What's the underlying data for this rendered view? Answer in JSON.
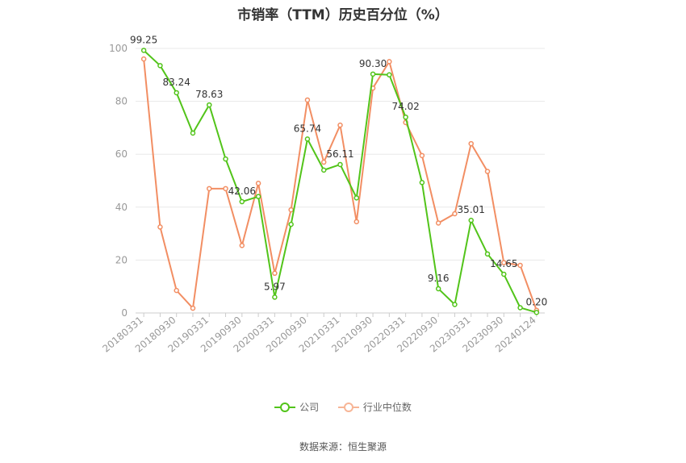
{
  "chart_data": {
    "type": "line",
    "title": "市销率（TTM）历史百分位（%）",
    "x": [
      "20180331",
      "20180630",
      "20180930",
      "20181231",
      "20190331",
      "20190630",
      "20190930",
      "20191231",
      "20200331",
      "20200630",
      "20200930",
      "20201231",
      "20210331",
      "20210630",
      "20210930",
      "20211231",
      "20220331",
      "20220630",
      "20220930",
      "20221231",
      "20230331",
      "20230630",
      "20230930",
      "20231231",
      "20240124"
    ],
    "x_tick_labels": [
      "20180331",
      "20180930",
      "20190331",
      "20190930",
      "20200331",
      "20200930",
      "20210331",
      "20210930",
      "20220331",
      "20220930",
      "20230331",
      "20230930",
      "20240124"
    ],
    "y_ticks": [
      0,
      20,
      40,
      60,
      80,
      100
    ],
    "ylim": [
      0,
      100
    ],
    "grid": true,
    "legend_position": "bottom",
    "series": [
      {
        "name": "公司",
        "color": "#52c41a",
        "values": [
          99.25,
          93.5,
          83.24,
          68.0,
          78.63,
          58.2,
          42.06,
          44.0,
          5.97,
          33.5,
          65.74,
          54.0,
          56.11,
          43.5,
          90.3,
          90.0,
          74.02,
          49.3,
          9.16,
          3.2,
          35.01,
          22.3,
          14.65,
          2.0,
          0.2
        ],
        "labels": [
          "99.25",
          "",
          "83.24",
          "",
          "78.63",
          "",
          "42.06",
          "",
          "5.97",
          "",
          "65.74",
          "",
          "56.11",
          "",
          "90.30",
          "",
          "74.02",
          "",
          "9.16",
          "",
          "35.01",
          "",
          "14.65",
          "",
          "0.20"
        ]
      },
      {
        "name": "行业中位数",
        "color": "#f28e63",
        "values": [
          96.0,
          32.5,
          8.5,
          1.8,
          47.0,
          47.0,
          25.5,
          49.0,
          15.0,
          39.0,
          80.5,
          57.0,
          71.0,
          34.5,
          85.0,
          95.0,
          72.0,
          59.5,
          34.0,
          37.5,
          64.0,
          53.5,
          19.0,
          18.0,
          1.0
        ],
        "labels": []
      }
    ]
  },
  "legend": {
    "company": "公司",
    "industry": "行业中位数"
  },
  "source": "数据来源：恒生聚源"
}
